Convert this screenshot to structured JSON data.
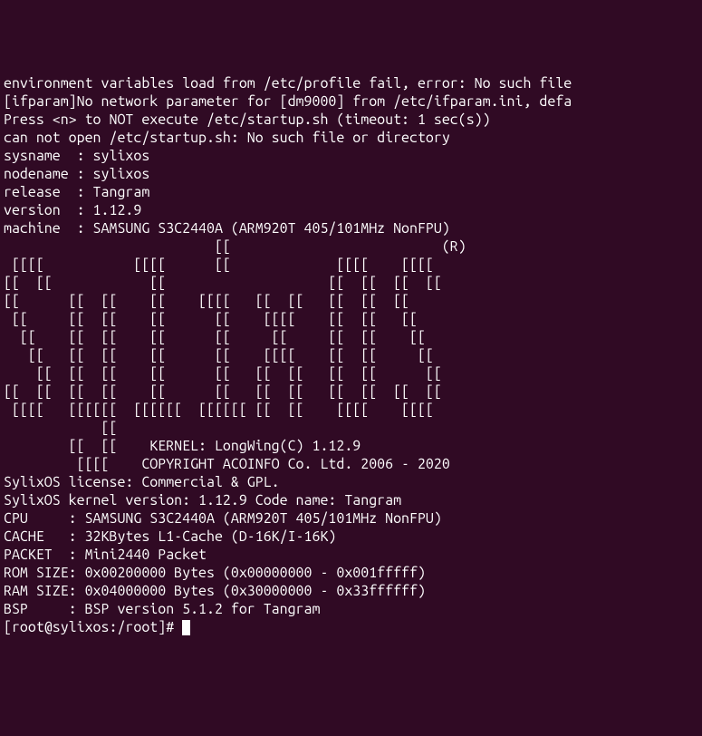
{
  "boot_messages": [
    "environment variables load from /etc/profile fail, error: No such file",
    "[ifparam]No network parameter for [dm9000] from /etc/ifparam.ini, defa",
    "Press <n> to NOT execute /etc/startup.sh (timeout: 1 sec(s))",
    "can not open /etc/startup.sh: No such file or directory"
  ],
  "sysinfo": {
    "sysname_label": "sysname  :",
    "sysname_value": "sylixos",
    "nodename_label": "nodename :",
    "nodename_value": "sylixos",
    "release_label": "release  :",
    "release_value": "Tangram",
    "version_label": "version  :",
    "version_value": "1.12.9",
    "machine_label": "machine  :",
    "machine_value": "SAMSUNG S3C2440A (ARM920T 405/101MHz NonFPU)"
  },
  "ascii_art": [
    "                          [[                          (R)",
    " [[[[           [[[[      [[             [[[[    [[[[",
    "[[  [[            [[                    [[  [[  [[  [[",
    "[[      [[  [[    [[    [[[[   [[  [[   [[  [[  [[",
    " [[     [[  [[    [[      [[    [[[[    [[  [[   [[",
    "  [[    [[  [[    [[      [[     [[     [[  [[    [[",
    "   [[   [[  [[    [[      [[    [[[[    [[  [[     [[",
    "    [[  [[  [[    [[      [[   [[  [[   [[  [[      [[",
    "[[  [[  [[  [[    [[      [[   [[  [[   [[  [[  [[  [[",
    " [[[[   [[[[[[  [[[[[[  [[[[[[ [[  [[    [[[[    [[[[",
    "            [[",
    "        [[  [[    KERNEL: LongWing(C) 1.12.9",
    "         [[[[    COPYRIGHT ACOINFO Co. Ltd. 2006 - 2020"
  ],
  "license_lines": [
    "SylixOS license: Commercial & GPL.",
    "SylixOS kernel version: 1.12.9 Code name: Tangram"
  ],
  "hw_info": {
    "cpu_label": "CPU     :",
    "cpu_value": "SAMSUNG S3C2440A (ARM920T 405/101MHz NonFPU)",
    "cache_label": "CACHE   :",
    "cache_value": "32KBytes L1-Cache (D-16K/I-16K)",
    "packet_label": "PACKET  :",
    "packet_value": "Mini2440 Packet",
    "rom_label": "ROM SIZE:",
    "rom_value": "0x00200000 Bytes (0x00000000 - 0x001fffff)",
    "ram_label": "RAM SIZE:",
    "ram_value": "0x04000000 Bytes (0x30000000 - 0x33ffffff)",
    "bsp_label": "BSP     :",
    "bsp_value": "BSP version 5.1.2 for Tangram"
  },
  "prompt": "[root@sylixos:/root]# ",
  "colors": {
    "background": "#300a24",
    "foreground": "#ffffff"
  }
}
